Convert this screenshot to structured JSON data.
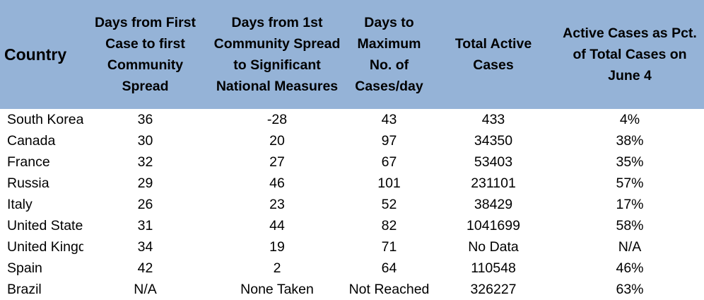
{
  "headers": [
    "Country",
    "Days from First\nCase to first\nCommunity\nSpread",
    "Days from 1st\nCommunity Spread\nto Significant\nNational Measures",
    "Days to\nMaximum\nNo. of\nCases/day",
    "Total Active\nCases",
    "Active Cases as Pct.\nof Total Cases on\nJune 4"
  ],
  "rows": [
    [
      "South Korea",
      "36",
      "-28",
      "43",
      "433",
      "4%"
    ],
    [
      "Canada",
      "30",
      "20",
      "97",
      "34350",
      "38%"
    ],
    [
      "France",
      "32",
      "27",
      "67",
      "53403",
      "35%"
    ],
    [
      "Russia",
      "29",
      "46",
      "101",
      "231101",
      "57%"
    ],
    [
      "Italy",
      "26",
      "23",
      "52",
      "38429",
      "17%"
    ],
    [
      "United States",
      "31",
      "44",
      "82",
      "1041699",
      "58%"
    ],
    [
      "United Kingdom",
      "34",
      "19",
      "71",
      "No Data",
      "N/A"
    ],
    [
      "Spain",
      "42",
      "2",
      "64",
      "110548",
      "46%"
    ],
    [
      "Brazil",
      "N/A",
      "None Taken",
      "Not Reached",
      "326227",
      "63%"
    ]
  ],
  "colors": {
    "header_bg": "#95b3d7",
    "text": "#000000"
  }
}
